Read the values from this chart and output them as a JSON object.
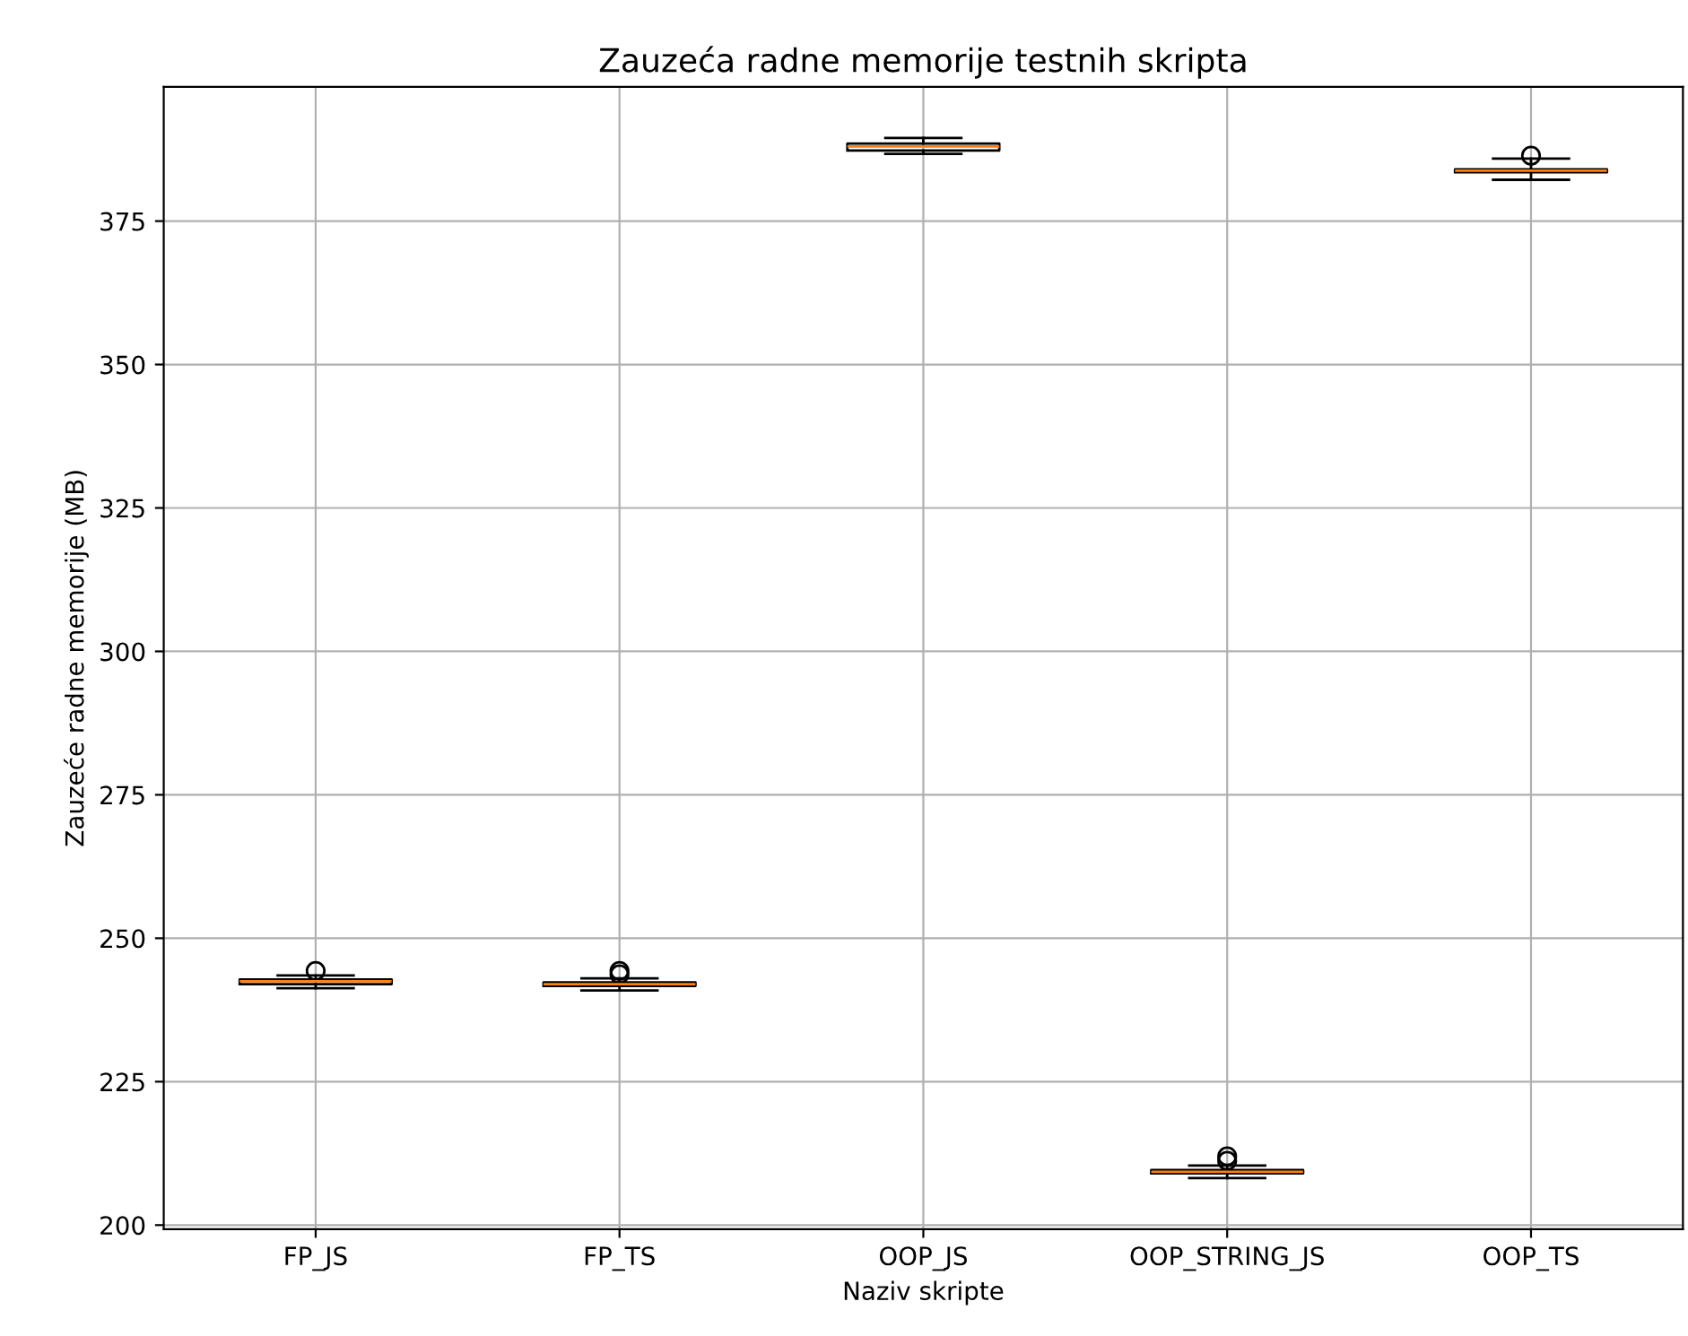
{
  "chart_data": {
    "type": "box",
    "title": "Zauzeća radne memorije testnih skripta",
    "xlabel": "Naziv skripte",
    "ylabel": "Zauzeće radne memorije (MB)",
    "categories": [
      "FP_JS",
      "FP_TS",
      "OOP_JS",
      "OOP_STRING_JS",
      "OOP_TS"
    ],
    "boxes": [
      {
        "low": 241.3,
        "q1": 242.0,
        "median": 242.5,
        "q3": 242.8,
        "high": 243.5,
        "outliers": [
          244.3
        ]
      },
      {
        "low": 240.9,
        "q1": 241.7,
        "median": 242.0,
        "q3": 242.3,
        "high": 243.0,
        "outliers": [
          243.7,
          244.3
        ]
      },
      {
        "low": 386.7,
        "q1": 387.3,
        "median": 388.0,
        "q3": 388.5,
        "high": 389.5
      },
      {
        "low": 208.2,
        "q1": 209.0,
        "median": 209.3,
        "q3": 209.6,
        "high": 210.4,
        "outliers": [
          211.2,
          212.0
        ]
      },
      {
        "low": 382.2,
        "q1": 383.5,
        "median": 383.8,
        "q3": 384.0,
        "high": 385.9,
        "outliers": [
          386.4
        ]
      }
    ],
    "ylim": [
      199.3,
      398.4
    ],
    "yticks": [
      200,
      225,
      250,
      275,
      300,
      325,
      350,
      375
    ],
    "grid": true
  }
}
